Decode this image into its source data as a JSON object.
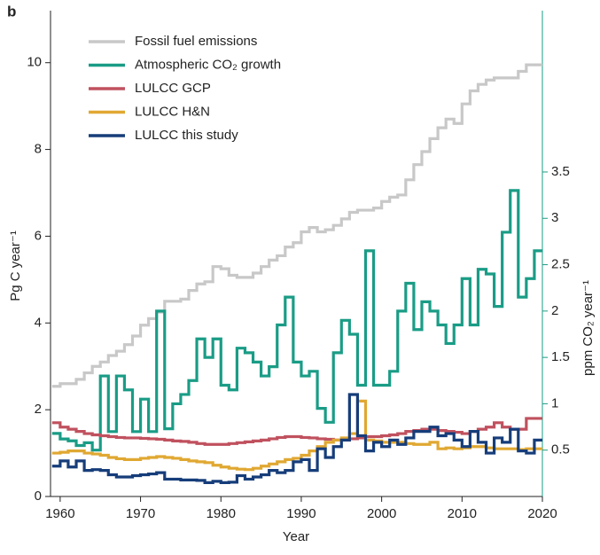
{
  "chart_data": {
    "type": "step",
    "panel_label": "b",
    "x_label": "Year",
    "y_label": "Pg C year⁻¹",
    "y2_label": "ppm CO₂ year⁻¹",
    "x": [
      1959,
      1960,
      1961,
      1962,
      1963,
      1964,
      1965,
      1966,
      1967,
      1968,
      1969,
      1970,
      1971,
      1972,
      1973,
      1974,
      1975,
      1976,
      1977,
      1978,
      1979,
      1980,
      1981,
      1982,
      1983,
      1984,
      1985,
      1986,
      1987,
      1988,
      1989,
      1990,
      1991,
      1992,
      1993,
      1994,
      1995,
      1996,
      1997,
      1998,
      1999,
      2000,
      2001,
      2002,
      2003,
      2004,
      2005,
      2006,
      2007,
      2008,
      2009,
      2010,
      2011,
      2012,
      2013,
      2014,
      2015,
      2016,
      2017,
      2018,
      2019
    ],
    "xlim": [
      1958.8,
      2020
    ],
    "xticks": [
      1960,
      1970,
      1980,
      1990,
      2000,
      2010,
      2020
    ],
    "ylim": [
      0,
      11.2
    ],
    "yticks": [
      0,
      2,
      4,
      6,
      8,
      10
    ],
    "y2lim": [
      0,
      5.24
    ],
    "y2ticks": [
      0.5,
      1.0,
      1.5,
      2.0,
      2.5,
      3.0,
      3.5
    ],
    "y2color": "#1a9c86",
    "legend": "upper left",
    "series": [
      {
        "name": "Fossil fuel emissions",
        "color": "#c8c8c8",
        "values": [
          2.54,
          2.6,
          2.6,
          2.7,
          2.85,
          3.0,
          3.1,
          3.25,
          3.35,
          3.5,
          3.7,
          3.95,
          4.1,
          4.25,
          4.5,
          4.5,
          4.55,
          4.75,
          4.9,
          4.95,
          5.3,
          5.25,
          5.1,
          5.05,
          5.05,
          5.15,
          5.3,
          5.45,
          5.55,
          5.75,
          5.85,
          6.1,
          6.2,
          6.1,
          6.15,
          6.25,
          6.4,
          6.55,
          6.6,
          6.6,
          6.65,
          6.8,
          6.9,
          6.95,
          7.3,
          7.65,
          7.95,
          8.25,
          8.5,
          8.7,
          8.6,
          9.05,
          9.35,
          9.5,
          9.6,
          9.65,
          9.65,
          9.65,
          9.8,
          9.95,
          9.95
        ]
      },
      {
        "name": "Atmospheric CO₂ growth",
        "color": "#1a9c86",
        "axis": "y2",
        "values": [
          0.68,
          0.62,
          0.6,
          0.55,
          0.58,
          0.5,
          1.3,
          0.7,
          1.3,
          1.15,
          0.7,
          1.05,
          0.7,
          2.0,
          0.73,
          1.0,
          1.1,
          1.25,
          1.7,
          1.5,
          1.7,
          1.2,
          1.15,
          1.6,
          1.55,
          1.45,
          1.3,
          1.4,
          1.85,
          2.15,
          1.45,
          1.3,
          1.35,
          0.95,
          0.8,
          1.55,
          1.9,
          1.75,
          1.2,
          2.65,
          1.2,
          1.2,
          1.35,
          2.0,
          2.3,
          1.8,
          2.1,
          2.0,
          1.85,
          1.65,
          1.85,
          2.35,
          1.85,
          2.45,
          2.4,
          2.05,
          2.85,
          3.3,
          2.15,
          2.35,
          2.65
        ]
      },
      {
        "name": "LULCC GCP",
        "color": "#c0515e",
        "values": [
          1.7,
          1.6,
          1.55,
          1.5,
          1.45,
          1.42,
          1.4,
          1.38,
          1.36,
          1.35,
          1.35,
          1.34,
          1.33,
          1.32,
          1.3,
          1.28,
          1.27,
          1.25,
          1.22,
          1.2,
          1.2,
          1.2,
          1.22,
          1.24,
          1.26,
          1.28,
          1.3,
          1.33,
          1.36,
          1.38,
          1.38,
          1.36,
          1.35,
          1.33,
          1.32,
          1.3,
          1.3,
          1.33,
          1.35,
          1.38,
          1.38,
          1.4,
          1.42,
          1.45,
          1.5,
          1.52,
          1.55,
          1.55,
          1.52,
          1.5,
          1.48,
          1.45,
          1.5,
          1.55,
          1.6,
          1.7,
          1.6,
          1.55,
          1.55,
          1.8,
          1.8
        ]
      },
      {
        "name": "LULCC H&N",
        "color": "#e0a832",
        "values": [
          1.0,
          1.02,
          1.05,
          1.05,
          1.0,
          0.98,
          0.95,
          0.9,
          0.87,
          0.85,
          0.85,
          0.88,
          0.9,
          0.92,
          0.9,
          0.88,
          0.85,
          0.82,
          0.8,
          0.78,
          0.72,
          0.68,
          0.65,
          0.63,
          0.62,
          0.65,
          0.7,
          0.75,
          0.8,
          0.85,
          0.88,
          0.95,
          1.05,
          1.15,
          1.25,
          1.3,
          1.35,
          1.45,
          2.2,
          1.3,
          1.28,
          1.25,
          1.25,
          1.25,
          1.22,
          1.2,
          1.2,
          1.25,
          1.1,
          1.12,
          1.1,
          1.12,
          1.15,
          1.15,
          1.12,
          1.1,
          1.1,
          1.1,
          1.08,
          1.1,
          1.1
        ]
      },
      {
        "name": "LULCC this study",
        "color": "#163d7a",
        "values": [
          0.7,
          0.82,
          0.68,
          0.82,
          0.6,
          0.62,
          0.6,
          0.5,
          0.45,
          0.45,
          0.48,
          0.5,
          0.52,
          0.55,
          0.4,
          0.4,
          0.38,
          0.38,
          0.37,
          0.32,
          0.35,
          0.32,
          0.33,
          0.48,
          0.4,
          0.45,
          0.5,
          0.6,
          0.55,
          0.6,
          0.8,
          0.85,
          0.6,
          1.1,
          0.9,
          1.15,
          1.3,
          2.35,
          1.4,
          1.05,
          1.25,
          1.15,
          1.3,
          1.2,
          1.35,
          1.5,
          1.5,
          1.6,
          1.4,
          1.45,
          1.3,
          1.15,
          1.5,
          1.25,
          1.0,
          1.35,
          1.25,
          1.55,
          1.05,
          1.0,
          1.3
        ]
      }
    ]
  }
}
